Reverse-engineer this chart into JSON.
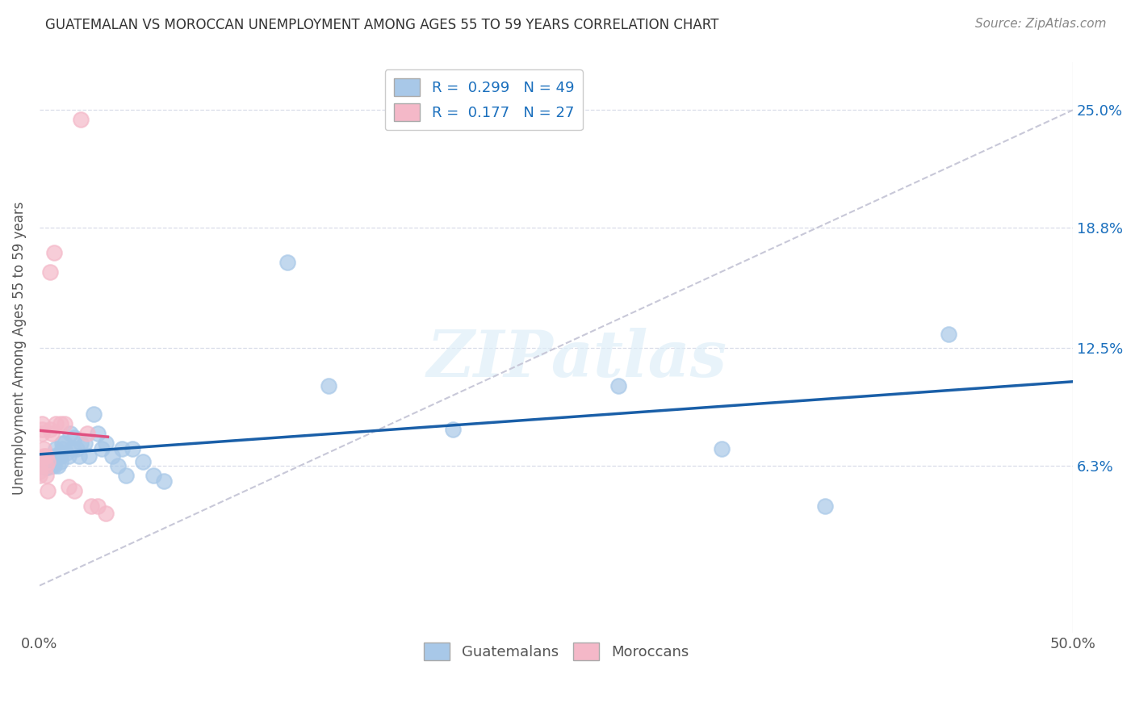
{
  "title": "GUATEMALAN VS MOROCCAN UNEMPLOYMENT AMONG AGES 55 TO 59 YEARS CORRELATION CHART",
  "source": "Source: ZipAtlas.com",
  "ylabel": "Unemployment Among Ages 55 to 59 years",
  "ytick_labels": [
    "6.3%",
    "12.5%",
    "18.8%",
    "25.0%"
  ],
  "ytick_values": [
    0.063,
    0.125,
    0.188,
    0.25
  ],
  "xtick_labels": [
    "0.0%",
    "50.0%"
  ],
  "xlim": [
    0.0,
    0.5
  ],
  "ylim": [
    -0.025,
    0.275
  ],
  "guatemalan_color": "#a8c8e8",
  "moroccan_color": "#f4b8c8",
  "guatemalan_line_color": "#1a5fa8",
  "moroccan_line_color": "#e05080",
  "diag_line_color": "#c8c8d8",
  "R_guatemalan": 0.299,
  "N_guatemalan": 49,
  "R_moroccan": 0.177,
  "N_moroccan": 27,
  "guatemalan_x": [
    0.0,
    0.002,
    0.003,
    0.003,
    0.004,
    0.004,
    0.005,
    0.005,
    0.006,
    0.006,
    0.007,
    0.007,
    0.008,
    0.009,
    0.009,
    0.01,
    0.01,
    0.011,
    0.011,
    0.012,
    0.013,
    0.014,
    0.015,
    0.016,
    0.017,
    0.018,
    0.019,
    0.02,
    0.022,
    0.024,
    0.026,
    0.028,
    0.03,
    0.032,
    0.035,
    0.038,
    0.04,
    0.042,
    0.045,
    0.05,
    0.055,
    0.06,
    0.12,
    0.14,
    0.2,
    0.28,
    0.33,
    0.38,
    0.44
  ],
  "guatemalan_y": [
    0.063,
    0.063,
    0.062,
    0.065,
    0.062,
    0.065,
    0.063,
    0.065,
    0.063,
    0.065,
    0.068,
    0.063,
    0.072,
    0.063,
    0.068,
    0.065,
    0.068,
    0.072,
    0.075,
    0.075,
    0.07,
    0.068,
    0.08,
    0.072,
    0.078,
    0.072,
    0.068,
    0.075,
    0.075,
    0.068,
    0.09,
    0.08,
    0.072,
    0.075,
    0.068,
    0.063,
    0.072,
    0.058,
    0.072,
    0.065,
    0.058,
    0.055,
    0.17,
    0.105,
    0.082,
    0.105,
    0.072,
    0.042,
    0.132
  ],
  "moroccan_x": [
    0.0,
    0.0,
    0.0,
    0.001,
    0.001,
    0.001,
    0.002,
    0.002,
    0.003,
    0.003,
    0.003,
    0.004,
    0.004,
    0.005,
    0.005,
    0.006,
    0.007,
    0.008,
    0.01,
    0.012,
    0.014,
    0.017,
    0.02,
    0.023,
    0.025,
    0.028,
    0.032
  ],
  "moroccan_y": [
    0.063,
    0.06,
    0.058,
    0.085,
    0.082,
    0.08,
    0.072,
    0.068,
    0.068,
    0.063,
    0.058,
    0.065,
    0.05,
    0.165,
    0.082,
    0.08,
    0.175,
    0.085,
    0.085,
    0.085,
    0.052,
    0.05,
    0.245,
    0.08,
    0.042,
    0.042,
    0.038
  ],
  "watermark_text": "ZIPatlas",
  "legend_label_guatemalan": "Guatemalans",
  "legend_label_moroccan": "Moroccans",
  "grid_color": "#d8dce8",
  "title_fontsize": 12,
  "source_fontsize": 11,
  "tick_fontsize": 13,
  "ylabel_fontsize": 12
}
